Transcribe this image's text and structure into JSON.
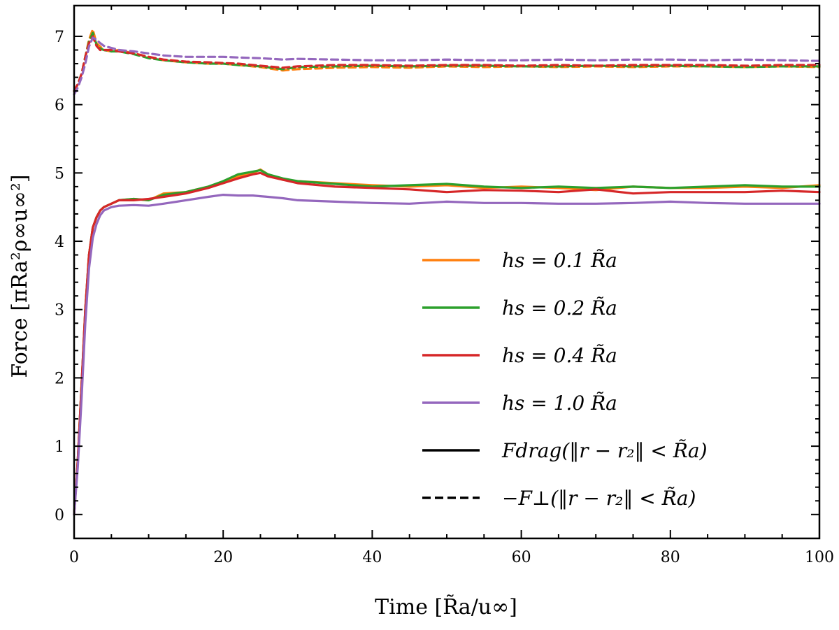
{
  "chart_data": {
    "type": "line",
    "xlabel": "Time [R̃a/u∞]",
    "ylabel": "Force [πRa²ρ∞u∞²]",
    "xlim": [
      0,
      100
    ],
    "ylim": [
      -0.35,
      7.45
    ],
    "xticks": [
      "0",
      "20",
      "40",
      "60",
      "80",
      "100"
    ],
    "yticks": [
      "0",
      "1",
      "2",
      "3",
      "4",
      "5",
      "6",
      "7"
    ],
    "legend_position": "lower-right",
    "series": [
      {
        "name": "hs = 0.1 R̃a, F_drag",
        "color": "#ff7f0e",
        "style": "solid",
        "x": [
          0,
          0.5,
          1,
          1.5,
          2,
          2.5,
          3,
          3.5,
          4,
          5,
          6,
          8,
          10,
          12,
          15,
          18,
          20,
          22,
          24,
          25,
          26,
          28,
          30,
          35,
          40,
          45,
          50,
          55,
          60,
          65,
          70,
          75,
          80,
          85,
          90,
          95,
          100
        ],
        "y": [
          0,
          0.8,
          1.9,
          3.0,
          3.8,
          4.2,
          4.35,
          4.45,
          4.5,
          4.55,
          4.6,
          4.62,
          4.6,
          4.7,
          4.72,
          4.8,
          4.85,
          4.95,
          5.0,
          5.05,
          4.98,
          4.9,
          4.88,
          4.85,
          4.82,
          4.8,
          4.82,
          4.78,
          4.8,
          4.78,
          4.75,
          4.8,
          4.78,
          4.78,
          4.8,
          4.78,
          4.82
        ]
      },
      {
        "name": "hs = 0.2 R̃a, F_drag",
        "color": "#2ca02c",
        "style": "solid",
        "x": [
          0,
          0.5,
          1,
          1.5,
          2,
          2.5,
          3,
          3.5,
          4,
          5,
          6,
          8,
          10,
          12,
          15,
          18,
          20,
          22,
          24,
          25,
          26,
          28,
          30,
          35,
          40,
          45,
          50,
          55,
          60,
          65,
          70,
          75,
          80,
          85,
          90,
          95,
          100
        ],
        "y": [
          0,
          0.8,
          1.9,
          3.0,
          3.8,
          4.2,
          4.35,
          4.45,
          4.5,
          4.55,
          4.6,
          4.62,
          4.6,
          4.68,
          4.72,
          4.8,
          4.88,
          4.98,
          5.02,
          5.04,
          4.98,
          4.92,
          4.88,
          4.84,
          4.8,
          4.82,
          4.84,
          4.8,
          4.78,
          4.8,
          4.78,
          4.8,
          4.78,
          4.8,
          4.82,
          4.8,
          4.8
        ]
      },
      {
        "name": "hs = 0.4 R̃a, F_drag",
        "color": "#d62728",
        "style": "solid",
        "x": [
          0,
          0.5,
          1,
          1.5,
          2,
          2.5,
          3,
          3.5,
          4,
          5,
          6,
          8,
          10,
          12,
          15,
          18,
          20,
          22,
          24,
          25,
          26,
          28,
          30,
          35,
          40,
          45,
          50,
          55,
          60,
          65,
          70,
          75,
          80,
          85,
          90,
          95,
          100
        ],
        "y": [
          0,
          0.8,
          1.9,
          3.0,
          3.8,
          4.2,
          4.35,
          4.45,
          4.5,
          4.55,
          4.6,
          4.6,
          4.62,
          4.65,
          4.7,
          4.78,
          4.85,
          4.92,
          4.98,
          5.0,
          4.95,
          4.9,
          4.85,
          4.8,
          4.78,
          4.76,
          4.72,
          4.75,
          4.74,
          4.72,
          4.76,
          4.7,
          4.72,
          4.72,
          4.72,
          4.74,
          4.72
        ]
      },
      {
        "name": "hs = 1.0 R̃a, F_drag",
        "color": "#9467bd",
        "style": "solid",
        "x": [
          0,
          0.5,
          1,
          1.5,
          2,
          2.5,
          3,
          3.5,
          4,
          5,
          6,
          8,
          10,
          12,
          15,
          18,
          20,
          22,
          24,
          25,
          26,
          28,
          30,
          35,
          40,
          45,
          50,
          55,
          60,
          65,
          70,
          75,
          80,
          85,
          90,
          95,
          100
        ],
        "y": [
          0,
          0.7,
          1.7,
          2.8,
          3.6,
          4.05,
          4.25,
          4.38,
          4.45,
          4.5,
          4.52,
          4.53,
          4.52,
          4.55,
          4.6,
          4.65,
          4.68,
          4.67,
          4.67,
          4.66,
          4.65,
          4.63,
          4.6,
          4.58,
          4.56,
          4.55,
          4.58,
          4.56,
          4.56,
          4.55,
          4.55,
          4.56,
          4.58,
          4.56,
          4.55,
          4.55,
          4.55
        ]
      },
      {
        "name": "hs = 0.1 R̃a, -F_perp",
        "color": "#ff7f0e",
        "style": "dashed",
        "x": [
          0,
          0.5,
          1,
          1.5,
          2,
          2.5,
          3,
          3.5,
          4,
          5,
          6,
          8,
          10,
          12,
          15,
          18,
          20,
          22,
          25,
          28,
          30,
          35,
          40,
          45,
          50,
          55,
          60,
          65,
          70,
          75,
          80,
          85,
          90,
          95,
          100
        ],
        "y": [
          6.2,
          6.3,
          6.45,
          6.7,
          6.95,
          7.1,
          6.9,
          6.85,
          6.8,
          6.78,
          6.8,
          6.75,
          6.7,
          6.65,
          6.62,
          6.6,
          6.6,
          6.58,
          6.55,
          6.5,
          6.52,
          6.54,
          6.55,
          6.54,
          6.56,
          6.55,
          6.56,
          6.55,
          6.56,
          6.55,
          6.56,
          6.56,
          6.55,
          6.56,
          6.55
        ]
      },
      {
        "name": "hs = 0.2 R̃a, -F_perp",
        "color": "#2ca02c",
        "style": "dashed",
        "x": [
          0,
          0.5,
          1,
          1.5,
          2,
          2.5,
          3,
          3.5,
          4,
          5,
          6,
          8,
          10,
          12,
          15,
          18,
          20,
          22,
          25,
          28,
          30,
          35,
          40,
          45,
          50,
          55,
          60,
          65,
          70,
          75,
          80,
          85,
          90,
          95,
          100
        ],
        "y": [
          6.2,
          6.3,
          6.45,
          6.7,
          6.92,
          7.05,
          6.88,
          6.82,
          6.8,
          6.78,
          6.78,
          6.74,
          6.68,
          6.65,
          6.62,
          6.6,
          6.6,
          6.58,
          6.56,
          6.52,
          6.55,
          6.56,
          6.57,
          6.56,
          6.57,
          6.57,
          6.56,
          6.56,
          6.57,
          6.56,
          6.57,
          6.56,
          6.55,
          6.56,
          6.56
        ]
      },
      {
        "name": "hs = 0.4 R̃a, -F_perp",
        "color": "#d62728",
        "style": "dashed",
        "x": [
          0,
          0.5,
          1,
          1.5,
          2,
          2.5,
          3,
          3.5,
          4,
          5,
          6,
          8,
          10,
          12,
          15,
          18,
          20,
          22,
          25,
          28,
          30,
          35,
          40,
          45,
          50,
          55,
          60,
          65,
          70,
          75,
          80,
          85,
          90,
          95,
          100
        ],
        "y": [
          6.2,
          6.3,
          6.45,
          6.7,
          6.9,
          7.0,
          6.86,
          6.8,
          6.8,
          6.8,
          6.78,
          6.75,
          6.7,
          6.66,
          6.63,
          6.62,
          6.61,
          6.6,
          6.57,
          6.54,
          6.56,
          6.58,
          6.58,
          6.57,
          6.58,
          6.58,
          6.57,
          6.58,
          6.57,
          6.58,
          6.58,
          6.58,
          6.57,
          6.58,
          6.58
        ]
      },
      {
        "name": "hs = 1.0 R̃a, -F_perp",
        "color": "#9467bd",
        "style": "dashed",
        "x": [
          0,
          0.5,
          1,
          1.5,
          2,
          2.5,
          3,
          3.5,
          4,
          5,
          6,
          8,
          10,
          12,
          15,
          18,
          20,
          22,
          25,
          28,
          30,
          35,
          40,
          45,
          50,
          55,
          60,
          65,
          70,
          75,
          80,
          85,
          90,
          95,
          100
        ],
        "y": [
          6.15,
          6.25,
          6.4,
          6.6,
          6.85,
          6.98,
          6.95,
          6.9,
          6.86,
          6.83,
          6.8,
          6.78,
          6.75,
          6.72,
          6.7,
          6.7,
          6.7,
          6.69,
          6.68,
          6.66,
          6.67,
          6.66,
          6.65,
          6.65,
          6.66,
          6.65,
          6.65,
          6.66,
          6.65,
          6.66,
          6.66,
          6.65,
          6.66,
          6.65,
          6.64
        ]
      }
    ],
    "legend": [
      {
        "label": "hs = 0.1 R̃a",
        "color": "#ff7f0e",
        "style": "solid"
      },
      {
        "label": "hs = 0.2 R̃a",
        "color": "#2ca02c",
        "style": "solid"
      },
      {
        "label": "hs = 0.4 R̃a",
        "color": "#d62728",
        "style": "solid"
      },
      {
        "label": "hs = 1.0 R̃a",
        "color": "#9467bd",
        "style": "solid"
      },
      {
        "label": "Fdrag(‖r − r₂‖ < R̃a)",
        "color": "#000000",
        "style": "solid"
      },
      {
        "label": "−F⊥(‖r − r₂‖ < R̃a)",
        "color": "#000000",
        "style": "dashed"
      }
    ]
  }
}
